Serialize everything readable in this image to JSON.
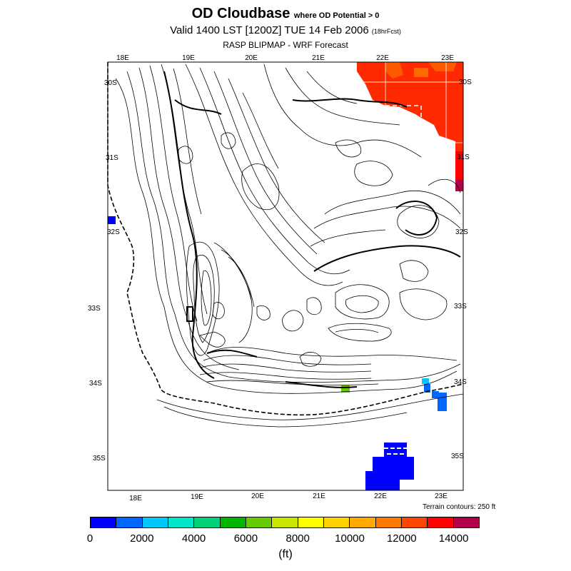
{
  "header": {
    "title_main": "OD Cloudbase",
    "title_sub": "where OD Potential > 0",
    "valid_line": "Valid 1400 LST [1200Z] TUE 14 Feb 2006",
    "valid_sub": "(18hrFcst)",
    "model_line": "RASP BLIPMAP - WRF Forecast"
  },
  "map": {
    "lon_top": [
      "18E",
      "19E",
      "20E",
      "21E",
      "22E",
      "23E"
    ],
    "lon_bottom": [
      "18E",
      "19E",
      "20E",
      "21E",
      "22E",
      "23E"
    ],
    "lat_left": [
      "30S",
      "31S",
      "32S",
      "33S",
      "34S",
      "35S"
    ],
    "lat_right": [
      "30S",
      "31S",
      "32S",
      "33S",
      "34S",
      "35S"
    ],
    "terrain_note": "Terrain contours: 250 ft"
  },
  "legend": {
    "colors": [
      "#0000ff",
      "#0066ff",
      "#00c8ff",
      "#00e6c8",
      "#00d27a",
      "#00b400",
      "#66cc00",
      "#c8e600",
      "#ffff00",
      "#ffd200",
      "#ffaa00",
      "#ff7800",
      "#ff4600",
      "#ff0000",
      "#b4004b"
    ],
    "ticks": [
      "0",
      "2000",
      "4000",
      "6000",
      "8000",
      "10000",
      "12000",
      "14000"
    ],
    "units": "(ft)"
  }
}
